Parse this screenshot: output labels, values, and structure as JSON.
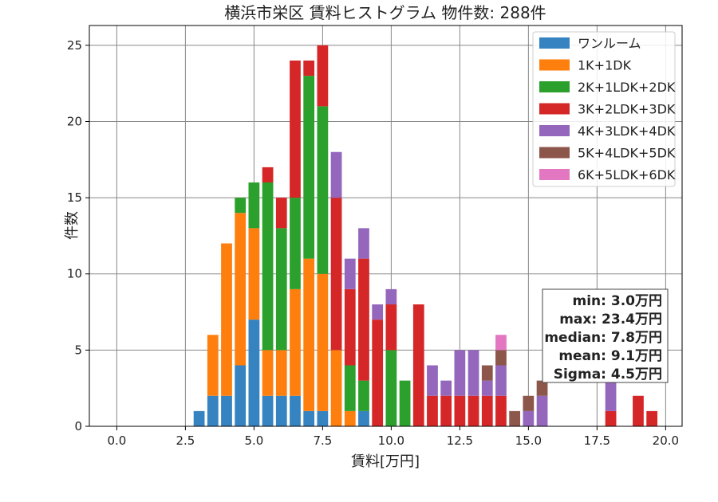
{
  "chart_data": {
    "type": "bar",
    "stacked": true,
    "title": "横浜市栄区 賃料ヒストグラム 物件数: 288件",
    "xlabel": "賃料[万円]",
    "ylabel": "件数",
    "xlim": [
      -1.0,
      20.6
    ],
    "ylim": [
      0,
      26.3
    ],
    "xticks": [
      "0.0",
      "2.5",
      "5.0",
      "7.5",
      "10.0",
      "12.5",
      "15.0",
      "17.5",
      "20.0"
    ],
    "yticks": [
      "0",
      "5",
      "10",
      "15",
      "20",
      "25"
    ],
    "grid": true,
    "legend_position": "top-right",
    "bin_width": 0.5,
    "bin_starts": [
      2.75,
      3.25,
      3.75,
      4.25,
      4.75,
      5.25,
      5.75,
      6.25,
      6.75,
      7.25,
      7.75,
      8.25,
      8.75,
      9.25,
      9.75,
      10.25,
      10.75,
      11.25,
      11.75,
      12.25,
      12.75,
      13.25,
      13.75,
      14.25,
      14.75,
      15.25,
      17.75,
      18.75,
      19.25
    ],
    "series": [
      {
        "name": "ワンルーム",
        "color": "#3583c0",
        "values": [
          1,
          2,
          2,
          4,
          7,
          2,
          2,
          2,
          1,
          1,
          0,
          0,
          1,
          0,
          0,
          0,
          0,
          0,
          0,
          0,
          0,
          0,
          0,
          0,
          0,
          0,
          0,
          0,
          0
        ]
      },
      {
        "name": "1K+1DK",
        "color": "#ff7f0e",
        "values": [
          0,
          4,
          10,
          10,
          6,
          3,
          3,
          7,
          10,
          9,
          5,
          1,
          0,
          0,
          0,
          0,
          0,
          0,
          0,
          0,
          0,
          0,
          0,
          0,
          0,
          0,
          0,
          0,
          0
        ]
      },
      {
        "name": "2K+1LDK+2DK",
        "color": "#2ca02c",
        "values": [
          0,
          0,
          0,
          1,
          3,
          11,
          8,
          6,
          12,
          11,
          0,
          3,
          2,
          0,
          5,
          3,
          0,
          0,
          0,
          0,
          0,
          0,
          0,
          0,
          0,
          0,
          0,
          0,
          0
        ]
      },
      {
        "name": "3K+2LDK+3DK",
        "color": "#d62728",
        "values": [
          0,
          0,
          0,
          0,
          0,
          1,
          2,
          9,
          1,
          4,
          10,
          5,
          8,
          7,
          3,
          0,
          8,
          2,
          2,
          2,
          2,
          2,
          2,
          0,
          0,
          0,
          1,
          2,
          1
        ]
      },
      {
        "name": "4K+3LDK+4DK",
        "color": "#9467bd",
        "values": [
          0,
          0,
          0,
          0,
          0,
          0,
          0,
          0,
          0,
          0,
          3,
          2,
          2,
          1,
          1,
          0,
          0,
          2,
          1,
          3,
          3,
          1,
          2,
          0,
          1,
          2,
          2,
          0,
          0
        ]
      },
      {
        "name": "5K+4LDK+5DK",
        "color": "#8c564b",
        "values": [
          0,
          0,
          0,
          0,
          0,
          0,
          0,
          0,
          0,
          0,
          0,
          0,
          0,
          0,
          0,
          0,
          0,
          0,
          0,
          0,
          0,
          1,
          1,
          1,
          1,
          1,
          0,
          0,
          0
        ]
      },
      {
        "name": "6K+5LDK+6DK",
        "color": "#e377c2",
        "values": [
          0,
          0,
          0,
          0,
          0,
          0,
          0,
          0,
          0,
          0,
          0,
          0,
          0,
          0,
          0,
          0,
          0,
          0,
          0,
          0,
          0,
          0,
          1,
          0,
          0,
          0,
          0,
          0,
          0
        ]
      }
    ],
    "stats_box": [
      "min: 3.0万円",
      "max: 23.4万円",
      "median: 7.8万円",
      "mean: 9.1万円",
      "Sigma: 4.5万円"
    ]
  }
}
